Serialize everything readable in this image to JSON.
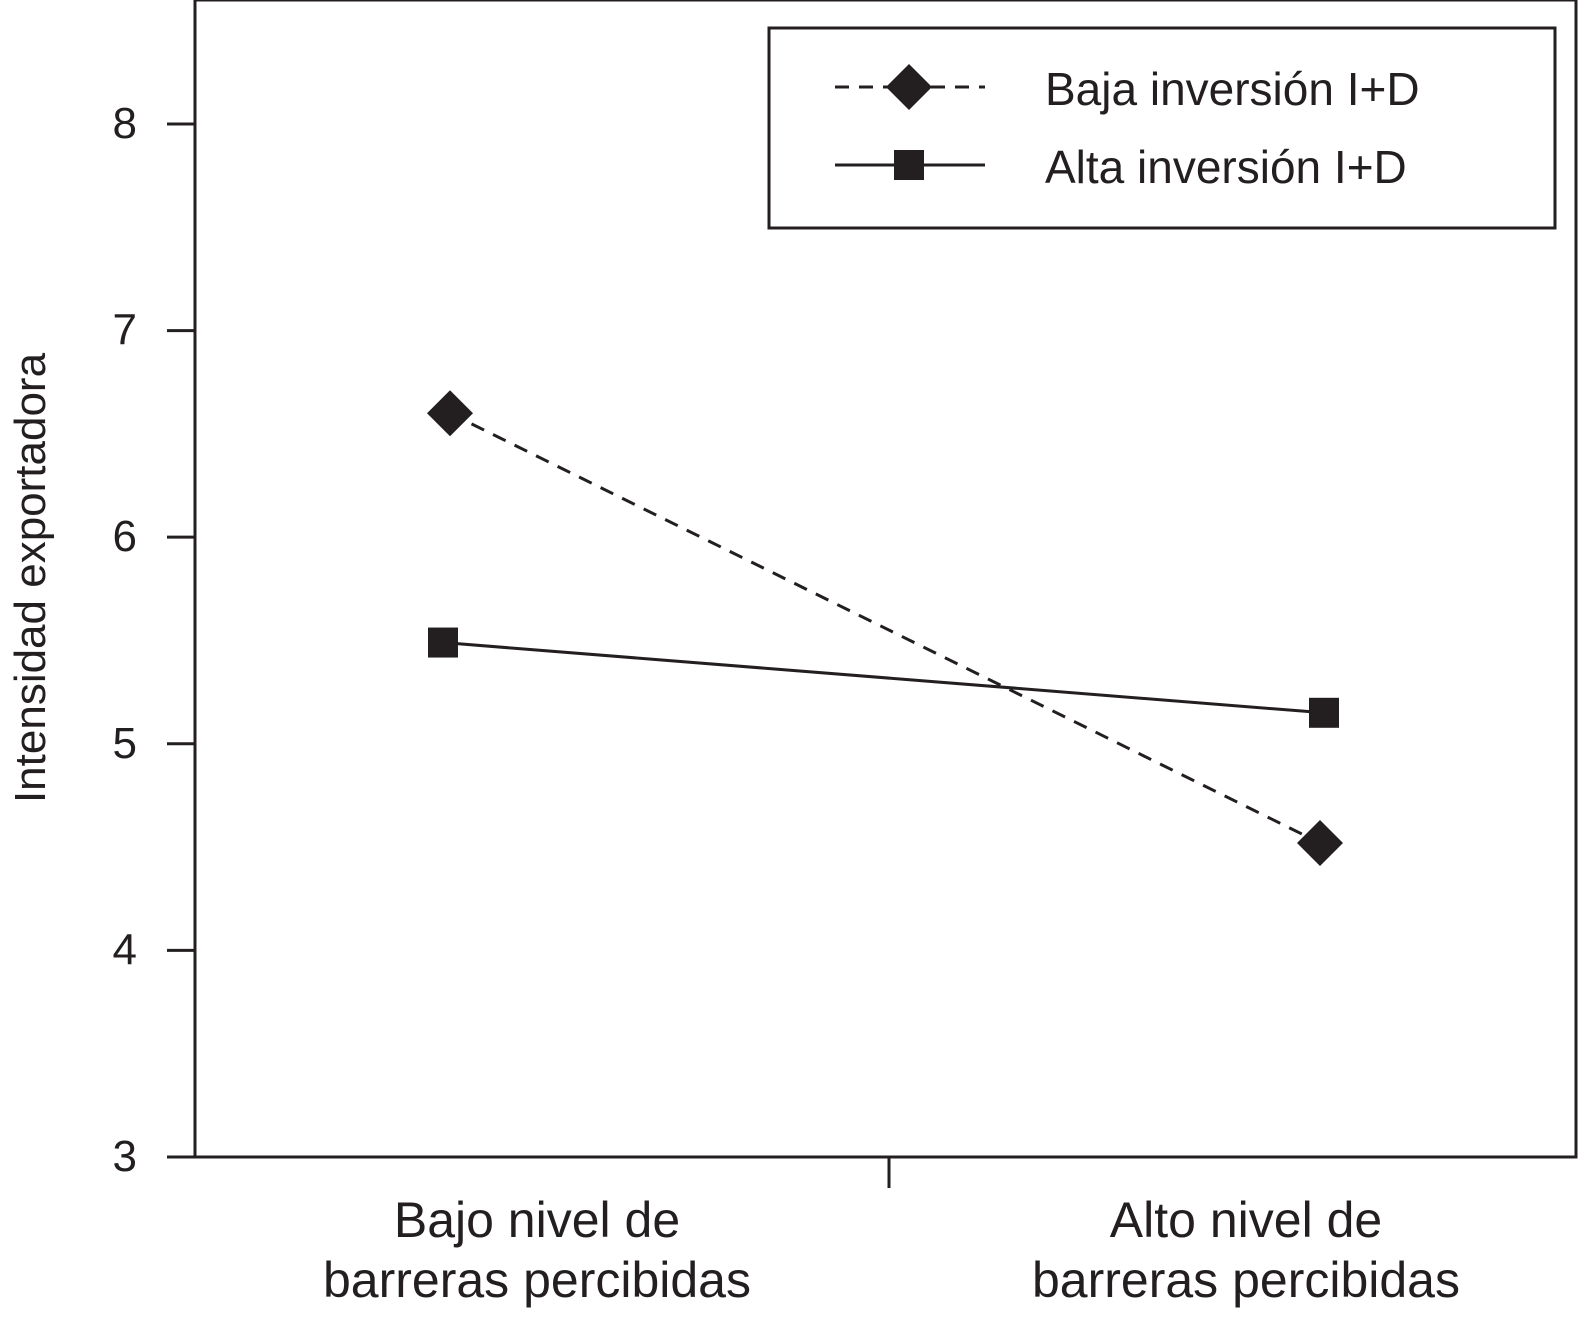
{
  "chart_data": {
    "type": "line",
    "title": "",
    "ylabel": "Intensidad exportadora",
    "xlabel": "",
    "ylim": [
      3,
      8.6
    ],
    "yticks": [
      3,
      4,
      5,
      6,
      7,
      8
    ],
    "categories": [
      [
        "Bajo nivel de",
        "barreras percibidas"
      ],
      [
        "Alto nivel de",
        "barreras percibidas"
      ]
    ],
    "legend_position": "top-right",
    "grid": false,
    "series": [
      {
        "name": "Baja inversión I+D",
        "values": [
          6.6,
          4.52
        ],
        "line_style": "dashed",
        "marker": "diamond",
        "color": "#231f20"
      },
      {
        "name": "Alta inversión I+D",
        "values": [
          5.49,
          5.15
        ],
        "line_style": "solid",
        "marker": "square",
        "color": "#231f20"
      }
    ]
  }
}
